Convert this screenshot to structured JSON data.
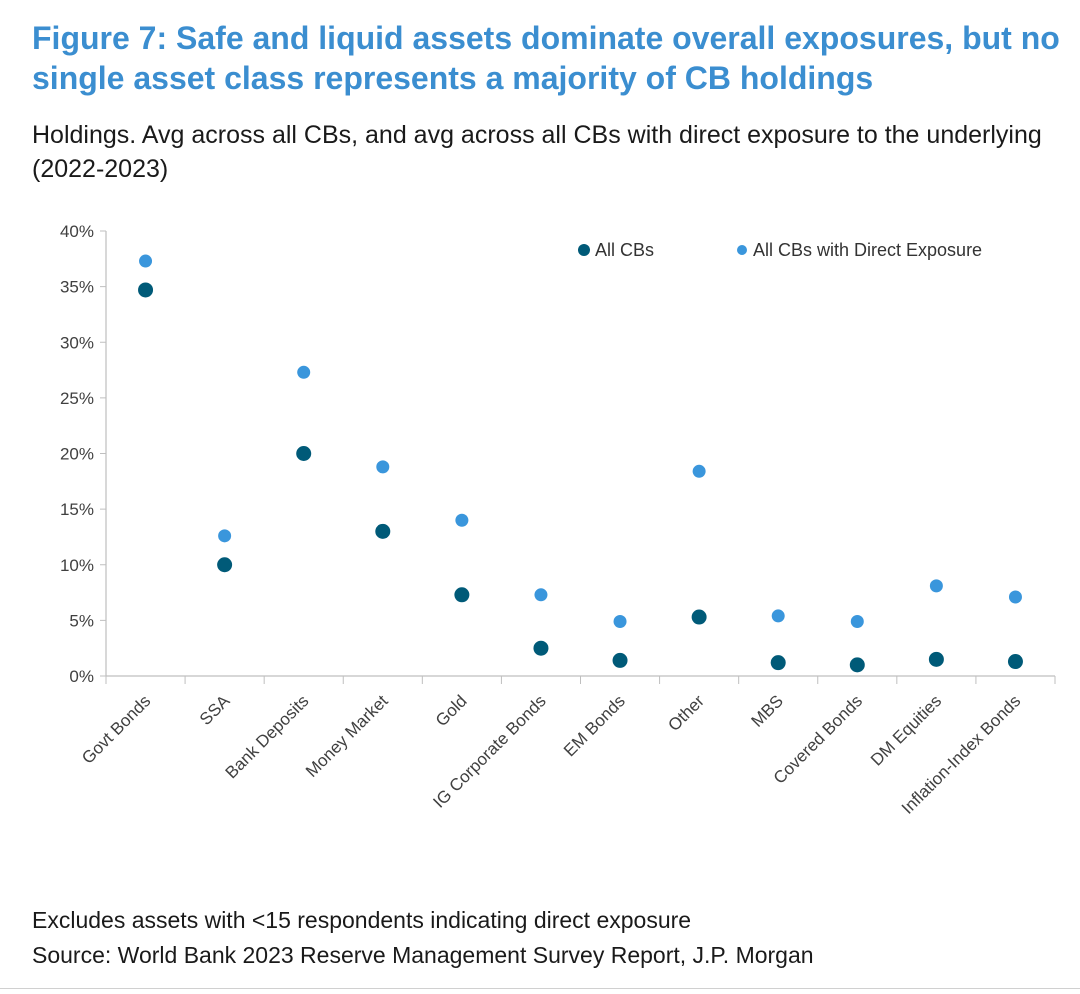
{
  "title": "Figure 7: Safe and liquid assets dominate overall exposures, but no single asset class represents a majority of CB holdings",
  "subtitle": "Holdings. Avg across all CBs, and avg across all CBs with direct exposure to the underlying (2022-2023)",
  "footnote": "Excludes assets with <15 respondents indicating direct exposure",
  "source": "Source: World Bank 2023 Reserve Management Survey Report, J.P. Morgan",
  "colors": {
    "all_cbs": "#005a78",
    "direct_exposure": "#3a96dc"
  },
  "chart_data": {
    "type": "scatter",
    "categories": [
      "Govt Bonds",
      "SSA",
      "Bank Deposits",
      "Money Market",
      "Gold",
      "IG Corporate Bonds",
      "EM Bonds",
      "Other",
      "MBS",
      "Covered Bonds",
      "DM Equities",
      "Inflation-Index Bonds"
    ],
    "series": [
      {
        "name": "All CBs",
        "values": [
          34.7,
          10.0,
          20.0,
          13.0,
          7.3,
          2.5,
          1.4,
          5.3,
          1.2,
          1.0,
          1.5,
          1.3
        ]
      },
      {
        "name": "All CBs with Direct Exposure",
        "values": [
          37.3,
          12.6,
          27.3,
          18.8,
          14.0,
          7.3,
          4.9,
          18.4,
          5.4,
          4.9,
          8.1,
          7.1
        ]
      }
    ],
    "y_ticks": [
      "0%",
      "5%",
      "10%",
      "15%",
      "20%",
      "25%",
      "30%",
      "35%",
      "40%"
    ],
    "ylim": [
      0,
      40
    ],
    "legend_position": "top-right",
    "grid": false
  }
}
